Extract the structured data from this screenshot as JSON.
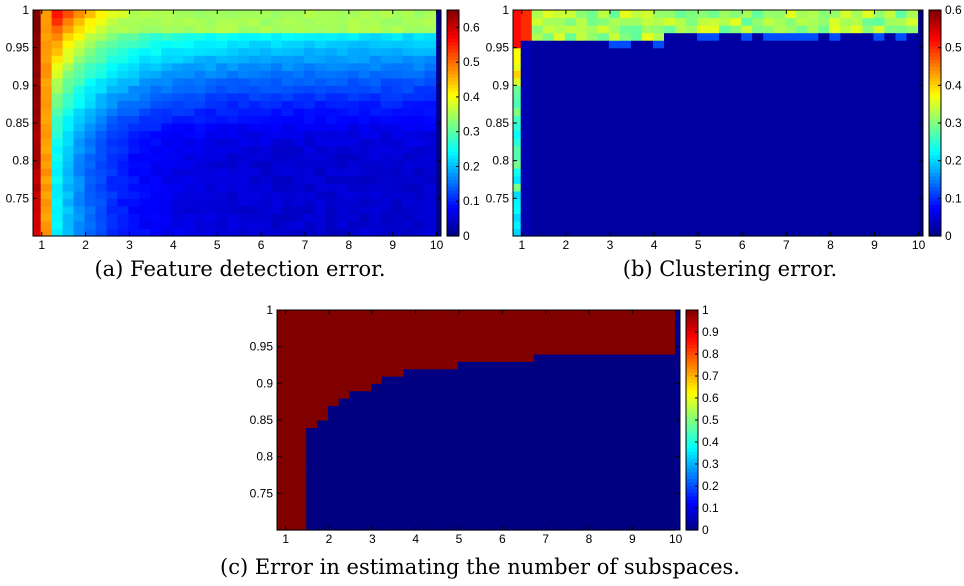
{
  "chart_data": [
    {
      "id": "a",
      "type": "heatmap",
      "caption": "(a) Feature detection error.",
      "xlabel": "",
      "ylabel": "",
      "xlim": [
        0.8,
        10.1
      ],
      "ylim": [
        0.7,
        1.0
      ],
      "xticks": [
        1,
        2,
        3,
        4,
        5,
        6,
        7,
        8,
        9,
        10
      ],
      "yticks": [
        0.75,
        0.8,
        0.85,
        0.9,
        0.95,
        1
      ],
      "ytick_labels": [
        "0.75",
        "0.8",
        "0.85",
        "0.9",
        "0.95",
        "1"
      ],
      "colorbar": {
        "range": [
          0,
          0.65
        ],
        "ticks": [
          0,
          0.1,
          0.2,
          0.3,
          0.4,
          0.5,
          0.6
        ],
        "tick_labels": [
          "0",
          "0.1",
          "0.2",
          "0.3",
          "0.4",
          "0.5",
          "0.6"
        ]
      },
      "grid": {
        "x_start": 0.85,
        "x_step": 0.25,
        "nx": 37,
        "y_start": 0.7,
        "y_step": 0.01,
        "ny": 30
      },
      "model": "feature"
    },
    {
      "id": "b",
      "type": "heatmap",
      "caption": "(b) Clustering error.",
      "xlabel": "",
      "ylabel": "",
      "xlim": [
        0.8,
        10.1
      ],
      "ylim": [
        0.7,
        1.0
      ],
      "xticks": [
        1,
        2,
        3,
        4,
        5,
        6,
        7,
        8,
        9,
        10
      ],
      "yticks": [
        0.75,
        0.8,
        0.85,
        0.9,
        0.95,
        1
      ],
      "ytick_labels": [
        "0.75",
        "0.8",
        "0.85",
        "0.9",
        "0.95",
        "1"
      ],
      "colorbar": {
        "range": [
          0,
          0.6
        ],
        "ticks": [
          0,
          0.1,
          0.2,
          0.3,
          0.4,
          0.5,
          0.6
        ],
        "tick_labels": [
          "0",
          "0.1",
          "0.2",
          "0.3",
          "0.4",
          "0.5",
          "0.6"
        ]
      },
      "grid": {
        "x_start": 0.85,
        "x_step": 0.25,
        "nx": 37,
        "y_start": 0.7,
        "y_step": 0.01,
        "ny": 30
      },
      "model": "clustering"
    },
    {
      "id": "c",
      "type": "heatmap",
      "caption": "(c) Error in estimating the number of subspaces.",
      "xlabel": "",
      "ylabel": "",
      "xlim": [
        0.8,
        10.1
      ],
      "ylim": [
        0.7,
        1.0
      ],
      "xticks": [
        1,
        2,
        3,
        4,
        5,
        6,
        7,
        8,
        9,
        10
      ],
      "yticks": [
        0.75,
        0.8,
        0.85,
        0.9,
        0.95,
        1
      ],
      "ytick_labels": [
        "0.75",
        "0.8",
        "0.85",
        "0.9",
        "0.95",
        "1"
      ],
      "colorbar": {
        "range": [
          0,
          1
        ],
        "ticks": [
          0,
          0.1,
          0.2,
          0.3,
          0.4,
          0.5,
          0.6,
          0.7,
          0.8,
          0.9,
          1
        ],
        "tick_labels": [
          "0",
          "0.1",
          "0.2",
          "0.3",
          "0.4",
          "0.5",
          "0.6",
          "0.7",
          "0.8",
          "0.9",
          "1"
        ]
      },
      "grid": {
        "x_start": 0.85,
        "x_step": 0.25,
        "nx": 37,
        "y_start": 0.7,
        "y_step": 0.01,
        "ny": 30
      },
      "model": "binary",
      "boundary": [
        [
          1.35,
          0.7
        ],
        [
          1.4,
          0.825
        ],
        [
          1.6,
          0.835
        ],
        [
          1.8,
          0.845
        ],
        [
          2.0,
          0.87
        ],
        [
          2.3,
          0.88
        ],
        [
          2.6,
          0.89
        ],
        [
          3.0,
          0.9
        ],
        [
          3.2,
          0.91
        ],
        [
          3.8,
          0.92
        ],
        [
          5.0,
          0.93
        ],
        [
          6.4,
          0.935
        ],
        [
          6.6,
          0.93
        ],
        [
          6.85,
          0.94
        ],
        [
          10.0,
          0.94
        ]
      ]
    }
  ]
}
